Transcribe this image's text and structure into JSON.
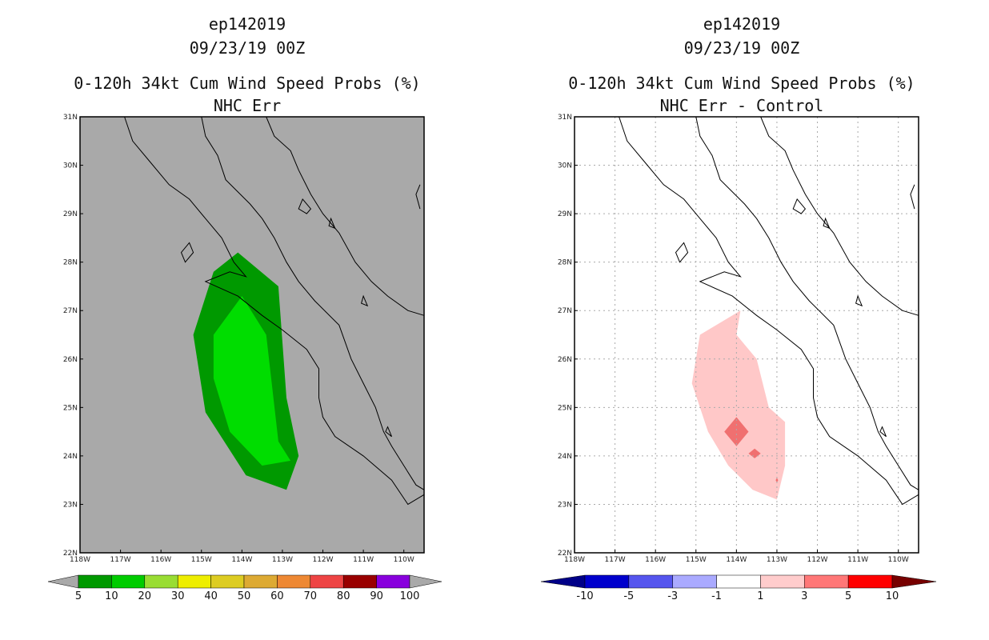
{
  "chart_data": [
    {
      "type": "heatmap",
      "title_lines": [
        "ep142019",
        "09/23/19 00Z",
        "0-120h 34kt Cum Wind Speed Probs (%)",
        "NHC Err"
      ],
      "x_ticks": [
        "118W",
        "117W",
        "116W",
        "115W",
        "114W",
        "113W",
        "112W",
        "111W",
        "110W"
      ],
      "y_ticks": [
        "31N",
        "30N",
        "29N",
        "28N",
        "27N",
        "26N",
        "25N",
        "24N",
        "23N",
        "22N"
      ],
      "xlim": [
        -118,
        -109.5
      ],
      "ylim": [
        22,
        31
      ],
      "grid": false,
      "background": "#a9a9a9",
      "colorbar": {
        "labels": [
          "5",
          "10",
          "20",
          "30",
          "40",
          "50",
          "60",
          "70",
          "80",
          "90",
          "100"
        ],
        "colors": [
          "#009900",
          "#00cc00",
          "#99dd33",
          "#eeee00",
          "#ddcc22",
          "#ddaa33",
          "#ee8833",
          "#ee4444",
          "#990000",
          "#8800dd"
        ],
        "under_color": "#a9a9a9",
        "over_color": "#a9a9a9"
      },
      "regions": [
        {
          "level": "5-10",
          "color": "#009900",
          "points": [
            [
              -114.1,
              28.2
            ],
            [
              -113.1,
              27.5
            ],
            [
              -112.9,
              25.2
            ],
            [
              -112.6,
              24.0
            ],
            [
              -112.9,
              23.3
            ],
            [
              -113.9,
              23.6
            ],
            [
              -114.9,
              24.9
            ],
            [
              -115.2,
              26.5
            ],
            [
              -114.7,
              27.8
            ]
          ]
        },
        {
          "level": "10-20",
          "color": "#00dd00",
          "points": [
            [
              -114.0,
              27.3
            ],
            [
              -113.4,
              26.5
            ],
            [
              -113.1,
              24.3
            ],
            [
              -112.8,
              23.9
            ],
            [
              -113.5,
              23.8
            ],
            [
              -114.3,
              24.5
            ],
            [
              -114.7,
              25.6
            ],
            [
              -114.7,
              26.5
            ]
          ]
        }
      ]
    },
    {
      "type": "heatmap",
      "title_lines": [
        "ep142019",
        "09/23/19 00Z",
        "0-120h 34kt Cum Wind Speed Probs (%)",
        "NHC Err - Control"
      ],
      "x_ticks": [
        "118W",
        "117W",
        "116W",
        "115W",
        "114W",
        "113W",
        "112W",
        "111W",
        "110W"
      ],
      "y_ticks": [
        "31N",
        "30N",
        "29N",
        "28N",
        "27N",
        "26N",
        "25N",
        "24N",
        "23N",
        "22N"
      ],
      "xlim": [
        -118,
        -109.5
      ],
      "ylim": [
        22,
        31
      ],
      "grid": true,
      "background": "#ffffff",
      "colorbar": {
        "labels": [
          "-10",
          "-5",
          "-3",
          "-1",
          "1",
          "3",
          "5",
          "10"
        ],
        "colors": [
          "#0000cc",
          "#5555ee",
          "#aaaaff",
          "#ffffff",
          "#ffcccc",
          "#ff7777",
          "#ff0000"
        ],
        "under_color": "#000088",
        "over_color": "#770000"
      },
      "regions": [
        {
          "level": "1-3",
          "color": "#ffc8c8",
          "points": [
            [
              -113.9,
              27.0
            ],
            [
              -114.0,
              26.5
            ],
            [
              -113.5,
              26.0
            ],
            [
              -113.2,
              25.0
            ],
            [
              -112.8,
              24.7
            ],
            [
              -112.8,
              23.8
            ],
            [
              -113.0,
              23.1
            ],
            [
              -113.6,
              23.3
            ],
            [
              -114.2,
              23.8
            ],
            [
              -114.7,
              24.5
            ],
            [
              -115.1,
              25.5
            ],
            [
              -114.9,
              26.5
            ]
          ]
        },
        {
          "level": "3-5",
          "color": "#f07070",
          "points": [
            [
              -114.0,
              24.8
            ],
            [
              -113.7,
              24.5
            ],
            [
              -114.0,
              24.2
            ],
            [
              -114.3,
              24.5
            ]
          ]
        },
        {
          "level": "3-5",
          "color": "#f07070",
          "points": [
            [
              -113.55,
              24.15
            ],
            [
              -113.4,
              24.05
            ],
            [
              -113.55,
              23.95
            ],
            [
              -113.7,
              24.05
            ]
          ]
        },
        {
          "level": "3-5",
          "color": "#f07070",
          "points": [
            [
              -113.0,
              23.55
            ],
            [
              -112.97,
              23.5
            ],
            [
              -113.0,
              23.45
            ],
            [
              -113.03,
              23.5
            ]
          ]
        }
      ]
    }
  ]
}
